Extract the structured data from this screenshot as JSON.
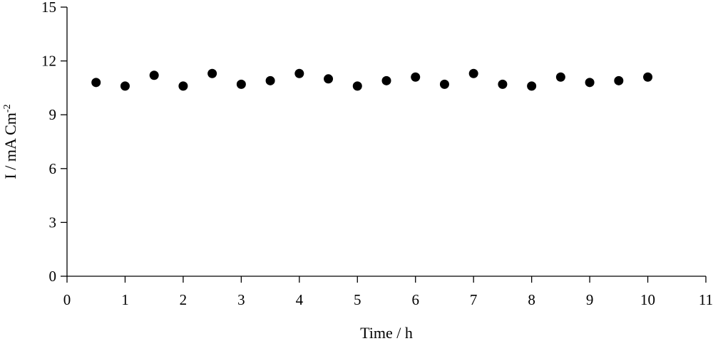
{
  "chart_data": {
    "type": "scatter",
    "xlabel": "Time / h",
    "ylabel_main": "I / mA Cm",
    "ylabel_superscript": "-2",
    "xlim": [
      0,
      11
    ],
    "ylim": [
      0,
      15
    ],
    "xticks": [
      0,
      1,
      2,
      3,
      4,
      5,
      6,
      7,
      8,
      9,
      10,
      11
    ],
    "yticks": [
      0,
      3,
      6,
      9,
      12,
      15
    ],
    "grid": false,
    "legend": "none",
    "marker_color": "#000000",
    "series": [
      {
        "x": [
          0.5,
          1,
          1.5,
          2,
          2.5,
          3,
          3.5,
          4,
          4.5,
          5,
          5.5,
          6,
          6.5,
          7,
          7.5,
          8,
          8.5,
          9,
          9.5,
          10
        ],
        "y": [
          10.8,
          10.6,
          11.2,
          10.6,
          11.3,
          10.7,
          10.9,
          11.3,
          11.0,
          10.6,
          10.9,
          11.1,
          10.7,
          11.3,
          10.7,
          10.6,
          11.1,
          10.8,
          10.9,
          11.1
        ]
      }
    ]
  }
}
